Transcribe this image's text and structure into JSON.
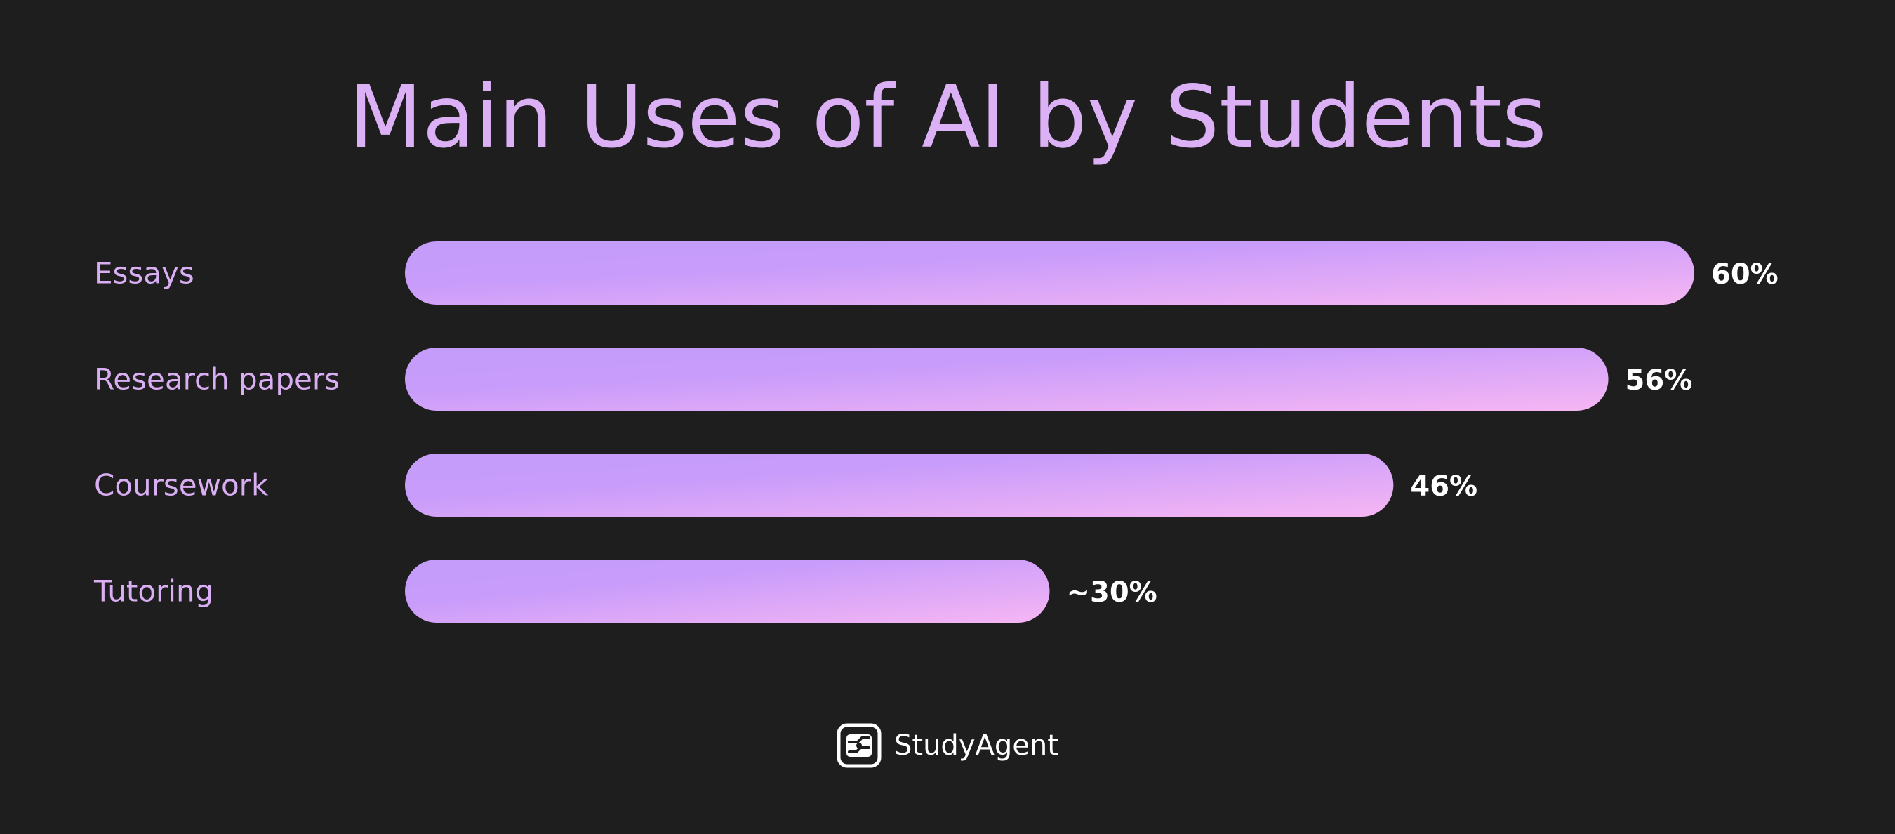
{
  "title": "Main Uses of AI by Students",
  "brand": {
    "name": "StudyAgent",
    "logo_icon": "studyagent-logo-icon"
  },
  "colors": {
    "background": "#1e1e1f",
    "title": "#dcb0f5",
    "category_label": "#d9aef2",
    "value_label": "#ffffff",
    "bar_gradient_start": "#c49cf9",
    "bar_gradient_end": "#f6b6f3"
  },
  "chart_data": {
    "type": "bar",
    "orientation": "horizontal",
    "title": "Main Uses of AI by Students",
    "categories": [
      "Essays",
      "Research papers",
      "Coursework",
      "Tutoring"
    ],
    "values": [
      60,
      56,
      46,
      30
    ],
    "value_labels": [
      "60%",
      "56%",
      "46%",
      "~30%"
    ],
    "xlabel": "",
    "ylabel": "",
    "xlim": [
      0,
      60
    ],
    "grid": false,
    "legend": "none"
  }
}
